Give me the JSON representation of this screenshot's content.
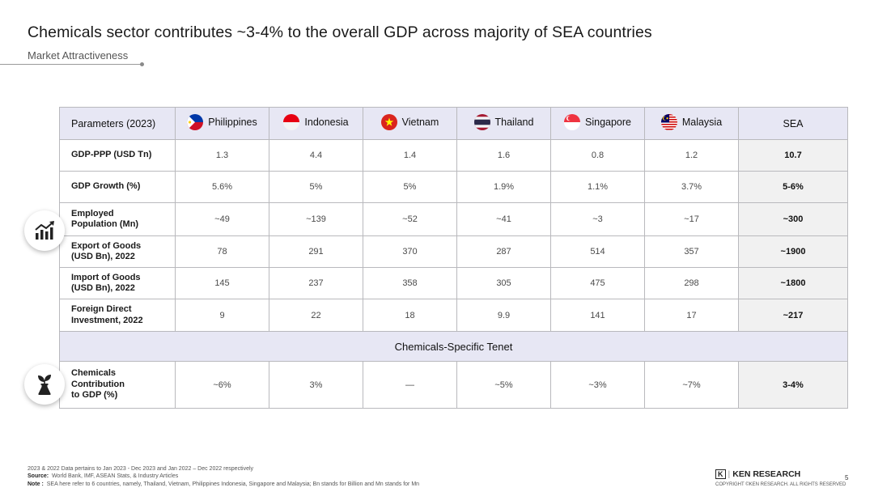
{
  "header": {
    "title": "Chemicals sector contributes ~3-4% to the overall GDP across majority of SEA countries",
    "subtitle": "Market Attractiveness"
  },
  "table": {
    "param_header": "Parameters (2023)",
    "countries": [
      "Philippines",
      "Indonesia",
      "Vietnam",
      "Thailand",
      "Singapore",
      "Malaysia"
    ],
    "sea_header": "SEA",
    "rows": [
      {
        "label": "GDP-PPP (USD Tn)",
        "values": [
          "1.3",
          "4.4",
          "1.4",
          "1.6",
          "0.8",
          "1.2"
        ],
        "sea": "10.7"
      },
      {
        "label": "GDP Growth (%)",
        "values": [
          "5.6%",
          "5%",
          "5%",
          "1.9%",
          "1.1%",
          "3.7%"
        ],
        "sea": "5-6%"
      },
      {
        "label_line1": "Employed",
        "label_line2": "Population (Mn)",
        "values": [
          "~49",
          "~139",
          "~52",
          "~41",
          "~3",
          "~17"
        ],
        "sea": "~300"
      },
      {
        "label_line1": "Export of Goods",
        "label_line2": "(USD Bn), 2022",
        "values": [
          "78",
          "291",
          "370",
          "287",
          "514",
          "357"
        ],
        "sea": "~1900"
      },
      {
        "label_line1": "Import of Goods",
        "label_line2": "(USD Bn), 2022",
        "values": [
          "145",
          "237",
          "358",
          "305",
          "475",
          "298"
        ],
        "sea": "~1800"
      },
      {
        "label_line1": "Foreign Direct",
        "label_line2": "Investment, 2022",
        "values": [
          "9",
          "22",
          "18",
          "9.9",
          "141",
          "17"
        ],
        "sea": "~217"
      }
    ],
    "section_title": "Chemicals-Specific Tenet",
    "chem_row": {
      "label_line1": "Chemicals",
      "label_line2": "Contribution",
      "label_line3": "to GDP (%)",
      "values": [
        "~6%",
        "3%",
        "—",
        "~5%",
        "~3%",
        "~7%"
      ],
      "sea": "3-4%"
    }
  },
  "icons": {
    "economic_badge": "bar-chart-growth-icon",
    "chemicals_badge": "plant-flask-icon"
  },
  "footer": {
    "note_period": "2023 & 2022 Data pertains to Jan 2023 - Dec 2023 and Jan 2022 – Dec 2022 respectively",
    "source_label": "Source:",
    "source_text": "World Bank, IMF, ASEAN Stats, & Industry Articles",
    "note_label": "Note :",
    "note_text": "SEA here refer to 6 countries, namely, Thailand, Vietnam, Philippines Indonesia, Singapore and Malaysia; Bn stands for Billion and Mn stands for Mn",
    "logo_mark": "K",
    "logo_text": "KEN RESEARCH",
    "copyright": "COPYRIGHT ©KEN RESEARCH. ALL RIGHTS RESERVED",
    "page_number": "5"
  },
  "colors": {
    "header_fill": "#e7e7f4",
    "sea_fill": "#f1f1f1",
    "border": "#b9b9bd"
  }
}
